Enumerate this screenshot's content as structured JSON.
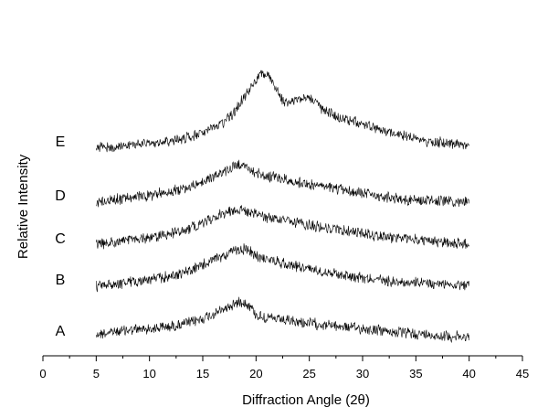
{
  "chart_data": {
    "type": "line",
    "title": "",
    "xlabel": "Diffraction Angle (2θ)",
    "ylabel": "Relative Intensity",
    "xlim": [
      0,
      45
    ],
    "x_ticks": [
      0,
      5,
      10,
      15,
      20,
      25,
      30,
      35,
      40,
      45
    ],
    "y_ticks_shown": false,
    "grid": false,
    "legend": "none",
    "stacked_offset_traces": true,
    "noise": "high-frequency noise on every trace",
    "series": [
      {
        "name": "A",
        "offset": 0.0,
        "x": [
          5,
          8,
          10,
          12,
          14,
          16,
          17,
          18,
          18.7,
          19.5,
          20,
          21,
          23,
          25,
          27,
          30,
          33,
          36,
          40
        ],
        "values": [
          0.1,
          0.22,
          0.26,
          0.33,
          0.45,
          0.68,
          0.84,
          1.0,
          1.08,
          0.92,
          0.66,
          0.58,
          0.48,
          0.42,
          0.36,
          0.26,
          0.16,
          0.08,
          0.0
        ]
      },
      {
        "name": "B",
        "offset": 1.0,
        "x": [
          5,
          8,
          10,
          12,
          14,
          16,
          17,
          18,
          19,
          20,
          22,
          25,
          28,
          30,
          33,
          36,
          40
        ],
        "values": [
          0.0,
          0.12,
          0.2,
          0.3,
          0.48,
          0.78,
          0.92,
          1.05,
          1.1,
          0.9,
          0.72,
          0.52,
          0.35,
          0.26,
          0.14,
          0.08,
          0.04
        ]
      },
      {
        "name": "C",
        "offset": 2.0,
        "x": [
          5,
          8,
          10,
          12,
          14,
          16,
          17,
          18,
          19,
          20,
          22,
          25,
          28,
          30,
          33,
          36,
          40
        ],
        "values": [
          0.0,
          0.15,
          0.22,
          0.34,
          0.52,
          0.8,
          0.95,
          1.05,
          1.02,
          0.9,
          0.76,
          0.58,
          0.44,
          0.34,
          0.22,
          0.12,
          0.02
        ]
      },
      {
        "name": "D",
        "offset": 3.0,
        "x": [
          5,
          8,
          10,
          12,
          14,
          16,
          17,
          18,
          18.5,
          19,
          20,
          22,
          25,
          28,
          30,
          33,
          36,
          40
        ],
        "values": [
          0.0,
          0.12,
          0.2,
          0.32,
          0.46,
          0.74,
          0.9,
          1.04,
          1.12,
          1.04,
          0.86,
          0.7,
          0.52,
          0.36,
          0.26,
          0.12,
          0.04,
          0.0
        ]
      },
      {
        "name": "E",
        "offset": 4.0,
        "x": [
          5,
          8,
          10,
          12,
          14,
          16,
          17,
          18,
          19,
          20,
          20.5,
          21,
          22,
          22.5,
          23,
          24,
          24.5,
          25.5,
          26,
          28,
          30,
          33,
          36,
          38,
          40
        ],
        "values": [
          0.0,
          0.08,
          0.14,
          0.22,
          0.34,
          0.56,
          0.78,
          1.06,
          1.58,
          2.0,
          2.18,
          2.2,
          1.66,
          1.4,
          1.32,
          1.44,
          1.56,
          1.42,
          1.2,
          0.88,
          0.7,
          0.44,
          0.22,
          0.14,
          0.1
        ]
      }
    ]
  }
}
